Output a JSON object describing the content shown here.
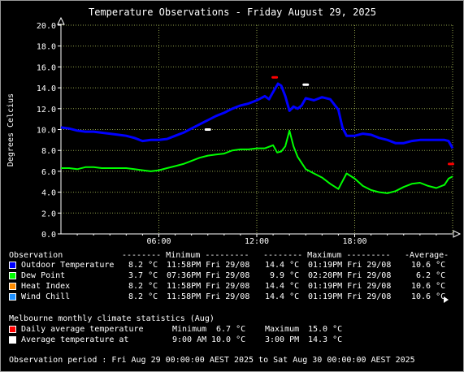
{
  "colors": {
    "grid": "#8fa04a",
    "axis": "#ffffff",
    "outdoor": "#0000ff",
    "dewpoint": "#00ff00",
    "heatindex": "#ff8c00",
    "windchill": "#1e90ff",
    "daily_avg": "#ff0000",
    "avg_temp": "#ffffff"
  },
  "chart_data": {
    "type": "line",
    "title": "Temperature Observations - Friday August 29, 2025",
    "ylabel": "Degrees Celcius",
    "xlabel": "",
    "x_unit": "hours",
    "xlim": [
      0,
      24
    ],
    "ylim": [
      0,
      20
    ],
    "y_ticks": [
      "20.0",
      "18.0",
      "16.0",
      "14.0",
      "12.0",
      "10.0",
      "8.0",
      "6.0",
      "4.0",
      "2.0",
      "0.0"
    ],
    "x_ticks": [
      {
        "label": "06:00",
        "x": 6
      },
      {
        "label": "12:00",
        "x": 12
      },
      {
        "label": "18:00",
        "x": 18
      }
    ],
    "grid": true,
    "series": [
      {
        "name": "Outdoor Temperature",
        "color_key": "outdoor",
        "x": [
          0,
          0.5,
          1,
          1.5,
          2,
          2.5,
          3,
          3.5,
          4,
          4.5,
          5,
          5.5,
          6,
          6.5,
          7,
          7.5,
          8,
          8.5,
          9,
          9.5,
          10,
          10.5,
          11,
          11.5,
          12,
          12.25,
          12.5,
          12.75,
          13,
          13.3,
          13.5,
          13.75,
          14,
          14.25,
          14.5,
          14.75,
          15,
          15.25,
          15.5,
          16,
          16.5,
          17,
          17.25,
          17.5,
          18,
          18.5,
          19,
          19.5,
          20,
          20.5,
          21,
          21.5,
          22,
          22.5,
          23,
          23.5,
          23.75,
          24
        ],
        "values": [
          10.2,
          10.1,
          9.9,
          9.8,
          9.8,
          9.7,
          9.6,
          9.5,
          9.4,
          9.2,
          8.9,
          9.0,
          9.0,
          9.1,
          9.4,
          9.7,
          10.1,
          10.5,
          10.9,
          11.3,
          11.6,
          12.0,
          12.3,
          12.5,
          12.8,
          13.0,
          13.2,
          12.9,
          13.6,
          14.4,
          14.2,
          13.2,
          11.8,
          12.2,
          12.0,
          12.3,
          13.0,
          12.9,
          12.8,
          13.1,
          12.9,
          11.9,
          10.2,
          9.4,
          9.4,
          9.6,
          9.5,
          9.2,
          9.0,
          8.7,
          8.7,
          8.9,
          9.0,
          9.0,
          9.0,
          9.0,
          8.9,
          8.2
        ]
      },
      {
        "name": "Dew Point",
        "color_key": "dewpoint",
        "x": [
          0,
          0.5,
          1,
          1.5,
          2,
          2.5,
          3,
          3.5,
          4,
          4.5,
          5,
          5.5,
          6,
          6.5,
          7,
          7.5,
          8,
          8.5,
          9,
          9.5,
          10,
          10.5,
          11,
          11.5,
          12,
          12.5,
          13,
          13.25,
          13.5,
          13.75,
          14,
          14.25,
          14.5,
          14.75,
          15,
          15.5,
          16,
          16.5,
          17,
          17.5,
          18,
          18.5,
          19,
          19.5,
          20,
          20.5,
          21,
          21.5,
          22,
          22.5,
          23,
          23.5,
          23.75,
          24
        ],
        "values": [
          6.3,
          6.3,
          6.2,
          6.4,
          6.4,
          6.3,
          6.3,
          6.3,
          6.3,
          6.2,
          6.1,
          6.0,
          6.1,
          6.3,
          6.5,
          6.7,
          7.0,
          7.3,
          7.5,
          7.6,
          7.7,
          8.0,
          8.1,
          8.1,
          8.2,
          8.2,
          8.5,
          7.8,
          7.9,
          8.4,
          9.9,
          8.4,
          7.4,
          6.8,
          6.2,
          5.8,
          5.4,
          4.8,
          4.3,
          5.8,
          5.3,
          4.6,
          4.2,
          4.0,
          3.9,
          4.1,
          4.5,
          4.8,
          4.9,
          4.6,
          4.4,
          4.7,
          5.3,
          5.5
        ]
      },
      {
        "name": "Heat Index",
        "color_key": "heatindex",
        "x": [],
        "values": []
      },
      {
        "name": "Wind Chill",
        "color_key": "windchill",
        "x": [],
        "values": []
      }
    ],
    "markers": [
      {
        "name": "Daily average temperature",
        "color_key": "daily_avg",
        "x": 13.1,
        "y": 15.0,
        "shape": "dash"
      },
      {
        "name": "Daily average temperature",
        "color_key": "daily_avg",
        "x": 23.9,
        "y": 6.7,
        "shape": "dash"
      },
      {
        "name": "Average temperature at",
        "color_key": "avg_temp",
        "x": 9.0,
        "y": 10.0,
        "shape": "dash"
      },
      {
        "name": "Average temperature at",
        "color_key": "avg_temp",
        "x": 15.0,
        "y": 14.3,
        "shape": "dash"
      }
    ]
  },
  "legend": {
    "header": {
      "observation": "Observation",
      "minimum": "-------- Minimum ---------",
      "maximum": "-------- Maximum ---------",
      "average": "-Average-"
    },
    "rows": [
      {
        "name": "Outdoor Temperature",
        "color_key": "outdoor",
        "min_val": "8.2 °C",
        "min_time": "11:58PM Fri 29/08",
        "max_val": "14.4 °C",
        "max_time": "01:19PM Fri 29/08",
        "avg": "10.6 °C"
      },
      {
        "name": "Dew Point",
        "color_key": "dewpoint",
        "min_val": "3.7 °C",
        "min_time": "07:36PM Fri 29/08",
        "max_val": "9.9 °C",
        "max_time": "02:20PM Fri 29/08",
        "avg": "6.2 °C"
      },
      {
        "name": "Heat Index",
        "color_key": "heatindex",
        "min_val": "8.2 °C",
        "min_time": "11:58PM Fri 29/08",
        "max_val": "14.4 °C",
        "max_time": "01:19PM Fri 29/08",
        "avg": "10.6 °C"
      },
      {
        "name": "Wind Chill",
        "color_key": "windchill",
        "min_val": "8.2 °C",
        "min_time": "11:58PM Fri 29/08",
        "max_val": "14.4 °C",
        "max_time": "01:19PM Fri 29/08",
        "avg": "10.6 °C"
      }
    ]
  },
  "climate": {
    "title": "Melbourne monthly climate statistics (Aug)",
    "rows": [
      {
        "label": "Daily average temperature",
        "color_key": "daily_avg",
        "left_label": "Minimum",
        "left_value": "6.7 °C",
        "right_label": "Maximum",
        "right_value": "15.0 °C"
      },
      {
        "label": "Average temperature at",
        "color_key": "avg_temp",
        "left_label": "9:00 AM",
        "left_value": "10.0 °C",
        "right_label": "3:00 PM",
        "right_value": "14.3 °C"
      }
    ]
  },
  "footer": {
    "period": "Observation period : Fri Aug 29 00:00:00 AEST 2025 to Sat Aug 30 00:00:00 AEST 2025"
  }
}
